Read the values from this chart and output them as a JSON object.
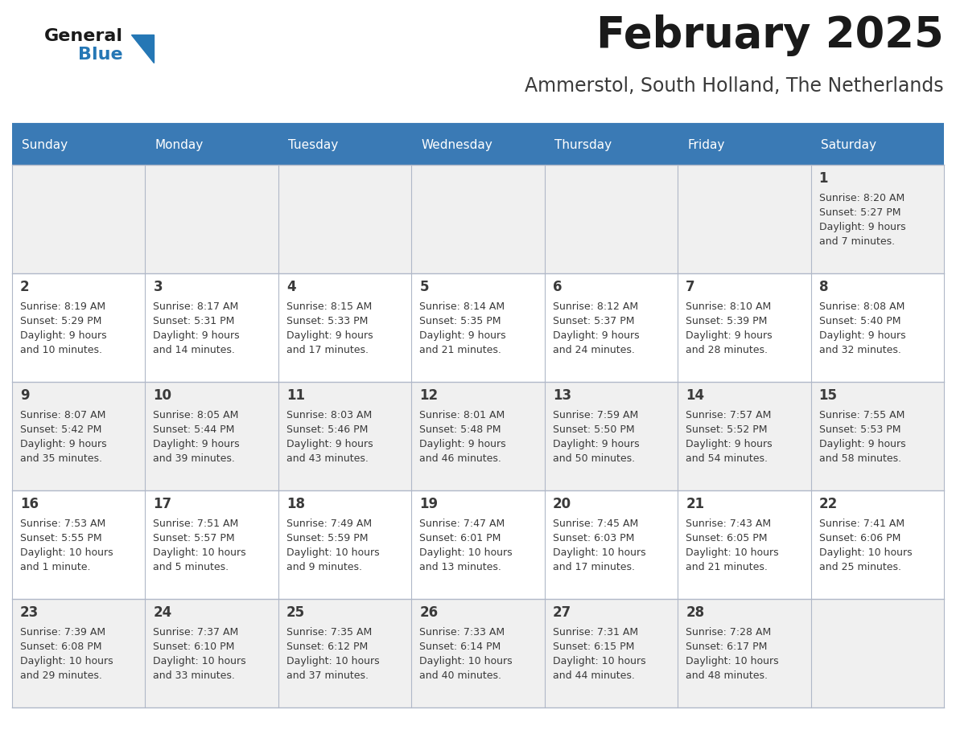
{
  "title": "February 2025",
  "subtitle": "Ammerstol, South Holland, The Netherlands",
  "days_of_week": [
    "Sunday",
    "Monday",
    "Tuesday",
    "Wednesday",
    "Thursday",
    "Friday",
    "Saturday"
  ],
  "header_bg": "#3a7ab5",
  "header_text": "#ffffff",
  "row_bg_1": "#f0f0f0",
  "row_bg_2": "#ffffff",
  "cell_border": "#b0b8c8",
  "day_num_color": "#3a3a3a",
  "info_text_color": "#3a3a3a",
  "title_color": "#1a1a1a",
  "subtitle_color": "#3a3a3a",
  "logo_general_color": "#1a1a1a",
  "logo_blue_color": "#2577b5",
  "weeks": [
    [
      null,
      null,
      null,
      null,
      null,
      null,
      1
    ],
    [
      2,
      3,
      4,
      5,
      6,
      7,
      8
    ],
    [
      9,
      10,
      11,
      12,
      13,
      14,
      15
    ],
    [
      16,
      17,
      18,
      19,
      20,
      21,
      22
    ],
    [
      23,
      24,
      25,
      26,
      27,
      28,
      null
    ]
  ],
  "day_data": {
    "1": {
      "sunrise": "8:20 AM",
      "sunset": "5:27 PM",
      "daylight_line1": "9 hours",
      "daylight_line2": "and 7 minutes."
    },
    "2": {
      "sunrise": "8:19 AM",
      "sunset": "5:29 PM",
      "daylight_line1": "9 hours",
      "daylight_line2": "and 10 minutes."
    },
    "3": {
      "sunrise": "8:17 AM",
      "sunset": "5:31 PM",
      "daylight_line1": "9 hours",
      "daylight_line2": "and 14 minutes."
    },
    "4": {
      "sunrise": "8:15 AM",
      "sunset": "5:33 PM",
      "daylight_line1": "9 hours",
      "daylight_line2": "and 17 minutes."
    },
    "5": {
      "sunrise": "8:14 AM",
      "sunset": "5:35 PM",
      "daylight_line1": "9 hours",
      "daylight_line2": "and 21 minutes."
    },
    "6": {
      "sunrise": "8:12 AM",
      "sunset": "5:37 PM",
      "daylight_line1": "9 hours",
      "daylight_line2": "and 24 minutes."
    },
    "7": {
      "sunrise": "8:10 AM",
      "sunset": "5:39 PM",
      "daylight_line1": "9 hours",
      "daylight_line2": "and 28 minutes."
    },
    "8": {
      "sunrise": "8:08 AM",
      "sunset": "5:40 PM",
      "daylight_line1": "9 hours",
      "daylight_line2": "and 32 minutes."
    },
    "9": {
      "sunrise": "8:07 AM",
      "sunset": "5:42 PM",
      "daylight_line1": "9 hours",
      "daylight_line2": "and 35 minutes."
    },
    "10": {
      "sunrise": "8:05 AM",
      "sunset": "5:44 PM",
      "daylight_line1": "9 hours",
      "daylight_line2": "and 39 minutes."
    },
    "11": {
      "sunrise": "8:03 AM",
      "sunset": "5:46 PM",
      "daylight_line1": "9 hours",
      "daylight_line2": "and 43 minutes."
    },
    "12": {
      "sunrise": "8:01 AM",
      "sunset": "5:48 PM",
      "daylight_line1": "9 hours",
      "daylight_line2": "and 46 minutes."
    },
    "13": {
      "sunrise": "7:59 AM",
      "sunset": "5:50 PM",
      "daylight_line1": "9 hours",
      "daylight_line2": "and 50 minutes."
    },
    "14": {
      "sunrise": "7:57 AM",
      "sunset": "5:52 PM",
      "daylight_line1": "9 hours",
      "daylight_line2": "and 54 minutes."
    },
    "15": {
      "sunrise": "7:55 AM",
      "sunset": "5:53 PM",
      "daylight_line1": "9 hours",
      "daylight_line2": "and 58 minutes."
    },
    "16": {
      "sunrise": "7:53 AM",
      "sunset": "5:55 PM",
      "daylight_line1": "10 hours",
      "daylight_line2": "and 1 minute."
    },
    "17": {
      "sunrise": "7:51 AM",
      "sunset": "5:57 PM",
      "daylight_line1": "10 hours",
      "daylight_line2": "and 5 minutes."
    },
    "18": {
      "sunrise": "7:49 AM",
      "sunset": "5:59 PM",
      "daylight_line1": "10 hours",
      "daylight_line2": "and 9 minutes."
    },
    "19": {
      "sunrise": "7:47 AM",
      "sunset": "6:01 PM",
      "daylight_line1": "10 hours",
      "daylight_line2": "and 13 minutes."
    },
    "20": {
      "sunrise": "7:45 AM",
      "sunset": "6:03 PM",
      "daylight_line1": "10 hours",
      "daylight_line2": "and 17 minutes."
    },
    "21": {
      "sunrise": "7:43 AM",
      "sunset": "6:05 PM",
      "daylight_line1": "10 hours",
      "daylight_line2": "and 21 minutes."
    },
    "22": {
      "sunrise": "7:41 AM",
      "sunset": "6:06 PM",
      "daylight_line1": "10 hours",
      "daylight_line2": "and 25 minutes."
    },
    "23": {
      "sunrise": "7:39 AM",
      "sunset": "6:08 PM",
      "daylight_line1": "10 hours",
      "daylight_line2": "and 29 minutes."
    },
    "24": {
      "sunrise": "7:37 AM",
      "sunset": "6:10 PM",
      "daylight_line1": "10 hours",
      "daylight_line2": "and 33 minutes."
    },
    "25": {
      "sunrise": "7:35 AM",
      "sunset": "6:12 PM",
      "daylight_line1": "10 hours",
      "daylight_line2": "and 37 minutes."
    },
    "26": {
      "sunrise": "7:33 AM",
      "sunset": "6:14 PM",
      "daylight_line1": "10 hours",
      "daylight_line2": "and 40 minutes."
    },
    "27": {
      "sunrise": "7:31 AM",
      "sunset": "6:15 PM",
      "daylight_line1": "10 hours",
      "daylight_line2": "and 44 minutes."
    },
    "28": {
      "sunrise": "7:28 AM",
      "sunset": "6:17 PM",
      "daylight_line1": "10 hours",
      "daylight_line2": "and 48 minutes."
    }
  }
}
